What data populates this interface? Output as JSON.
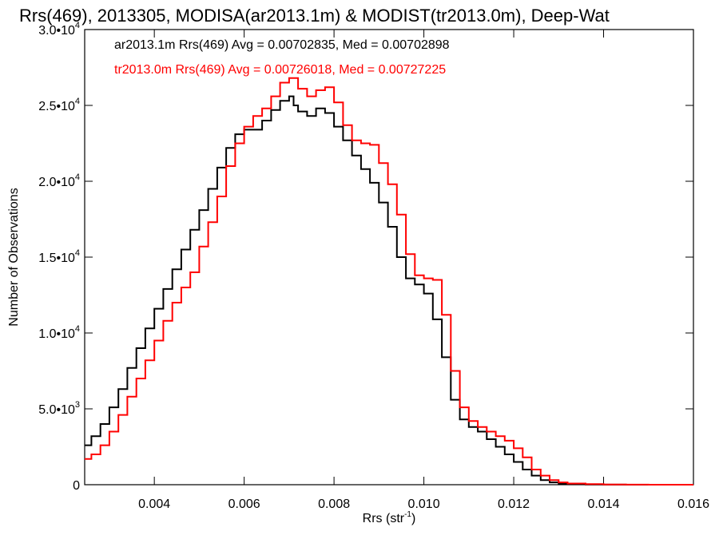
{
  "chart_data": {
    "type": "line",
    "title": "Rrs(469), 2013305, MODISA(ar2013.1m) & MODIST(tr2013.0m), Deep-Wat",
    "xlabel": "Rrs (str",
    "xlabel_sup": "-1",
    "xlabel_end": ")",
    "ylabel": "Number of Observations",
    "xlim": [
      0.00245,
      0.016
    ],
    "ylim": [
      0,
      30000
    ],
    "grid": false,
    "line_style": "step",
    "x_ticks": [
      {
        "value": 0.004,
        "label": "0.004"
      },
      {
        "value": 0.006,
        "label": "0.006"
      },
      {
        "value": 0.008,
        "label": "0.008"
      },
      {
        "value": 0.01,
        "label": "0.010"
      },
      {
        "value": 0.012,
        "label": "0.012"
      },
      {
        "value": 0.014,
        "label": "0.014"
      },
      {
        "value": 0.016,
        "label": "0.016"
      }
    ],
    "y_ticks": [
      {
        "value": 0,
        "label": "0",
        "exp": ""
      },
      {
        "value": 5000,
        "label": "5.0•10",
        "exp": "3"
      },
      {
        "value": 10000,
        "label": "1.0•10",
        "exp": "4"
      },
      {
        "value": 15000,
        "label": "1.5•10",
        "exp": "4"
      },
      {
        "value": 20000,
        "label": "2.0•10",
        "exp": "4"
      },
      {
        "value": 25000,
        "label": "2.5•10",
        "exp": "4"
      },
      {
        "value": 30000,
        "label": "3.0•10",
        "exp": "4"
      }
    ],
    "legend_placement": "top-left",
    "series": [
      {
        "name": "ar2013.1m Rrs(469) Avg = 0.00702835, Med = 0.00702898",
        "color": "#000000",
        "x": [
          0.00245,
          0.0026,
          0.0028,
          0.003,
          0.0032,
          0.0034,
          0.0036,
          0.0038,
          0.004,
          0.0042,
          0.0044,
          0.0046,
          0.0048,
          0.005,
          0.0052,
          0.0054,
          0.0056,
          0.0058,
          0.006,
          0.0062,
          0.0064,
          0.0066,
          0.0068,
          0.007,
          0.0071,
          0.0072,
          0.0074,
          0.0076,
          0.0078,
          0.008,
          0.0082,
          0.0084,
          0.0086,
          0.0088,
          0.009,
          0.0092,
          0.0094,
          0.0096,
          0.0098,
          0.01,
          0.0102,
          0.0104,
          0.0106,
          0.0108,
          0.011,
          0.0112,
          0.0114,
          0.0116,
          0.0118,
          0.012,
          0.0122,
          0.0124,
          0.0126,
          0.0128,
          0.013,
          0.0132,
          0.0136,
          0.014,
          0.0145,
          0.015,
          0.016
        ],
        "values": [
          2600,
          3200,
          4000,
          5100,
          6300,
          7700,
          9000,
          10300,
          11600,
          12900,
          14200,
          15500,
          16800,
          18100,
          19500,
          20900,
          22200,
          23100,
          23400,
          23400,
          24000,
          24700,
          25300,
          25600,
          25000,
          24600,
          24300,
          24800,
          24500,
          23600,
          22700,
          21700,
          20800,
          19900,
          18600,
          17000,
          15000,
          13600,
          13200,
          12600,
          10900,
          8400,
          5600,
          4300,
          3800,
          3500,
          3000,
          2500,
          2000,
          1500,
          1000,
          600,
          300,
          150,
          80,
          40,
          15,
          5,
          0,
          0,
          0
        ]
      },
      {
        "name": "tr2013.0m Rrs(469) Avg = 0.00726018, Med = 0.00727225",
        "color": "#ff0000",
        "x": [
          0.00245,
          0.0026,
          0.0028,
          0.003,
          0.0032,
          0.0034,
          0.0036,
          0.0038,
          0.004,
          0.0042,
          0.0044,
          0.0046,
          0.0048,
          0.005,
          0.0052,
          0.0054,
          0.0056,
          0.0058,
          0.006,
          0.0062,
          0.0064,
          0.0066,
          0.0068,
          0.007,
          0.0072,
          0.0074,
          0.0076,
          0.0078,
          0.008,
          0.0082,
          0.0084,
          0.0086,
          0.0088,
          0.009,
          0.0092,
          0.0094,
          0.0096,
          0.0098,
          0.01,
          0.0102,
          0.0104,
          0.0106,
          0.0108,
          0.011,
          0.0112,
          0.0114,
          0.0116,
          0.0118,
          0.012,
          0.0122,
          0.0124,
          0.0126,
          0.0128,
          0.013,
          0.0132,
          0.0136,
          0.014,
          0.0145,
          0.015,
          0.016
        ],
        "values": [
          1700,
          2000,
          2600,
          3500,
          4600,
          5800,
          7000,
          8200,
          9500,
          10800,
          12000,
          13000,
          14000,
          15700,
          17300,
          19000,
          21000,
          22500,
          23600,
          24300,
          24800,
          25600,
          26500,
          26800,
          26100,
          25600,
          26000,
          26200,
          25200,
          23700,
          22700,
          22500,
          22400,
          21200,
          19800,
          17800,
          15200,
          13800,
          13600,
          13500,
          11200,
          7500,
          5100,
          4200,
          3800,
          3500,
          3200,
          2900,
          2400,
          1800,
          1000,
          600,
          300,
          150,
          80,
          40,
          15,
          5,
          0,
          0
        ]
      }
    ]
  }
}
